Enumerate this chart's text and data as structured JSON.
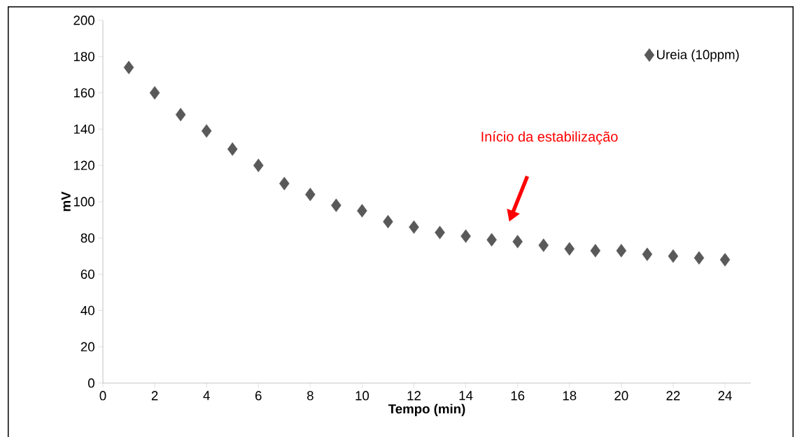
{
  "chart_data": {
    "type": "scatter",
    "xlabel": "Tempo (min)",
    "ylabel": "mV",
    "x": [
      1,
      2,
      3,
      4,
      5,
      6,
      7,
      8,
      9,
      10,
      11,
      12,
      13,
      14,
      15,
      16,
      17,
      18,
      19,
      20,
      21,
      22,
      23,
      24
    ],
    "series": [
      {
        "name": "Ureia (10ppm)",
        "color": "#595959",
        "values": [
          174,
          160,
          148,
          139,
          129,
          120,
          110,
          104,
          98,
          95,
          89,
          86,
          83,
          81,
          79,
          78,
          76,
          74,
          73,
          73,
          71,
          70,
          69,
          68
        ]
      }
    ],
    "xlim": [
      0,
      25
    ],
    "ylim": [
      0,
      200
    ],
    "xticks": [
      0,
      2,
      4,
      6,
      8,
      10,
      12,
      14,
      16,
      18,
      20,
      22,
      24
    ],
    "yticks": [
      0,
      20,
      40,
      60,
      80,
      100,
      120,
      140,
      160,
      180,
      200
    ],
    "grid": false,
    "legend": "top right",
    "marker": "diamond",
    "annotations": [
      "Início da estabilização"
    ]
  }
}
